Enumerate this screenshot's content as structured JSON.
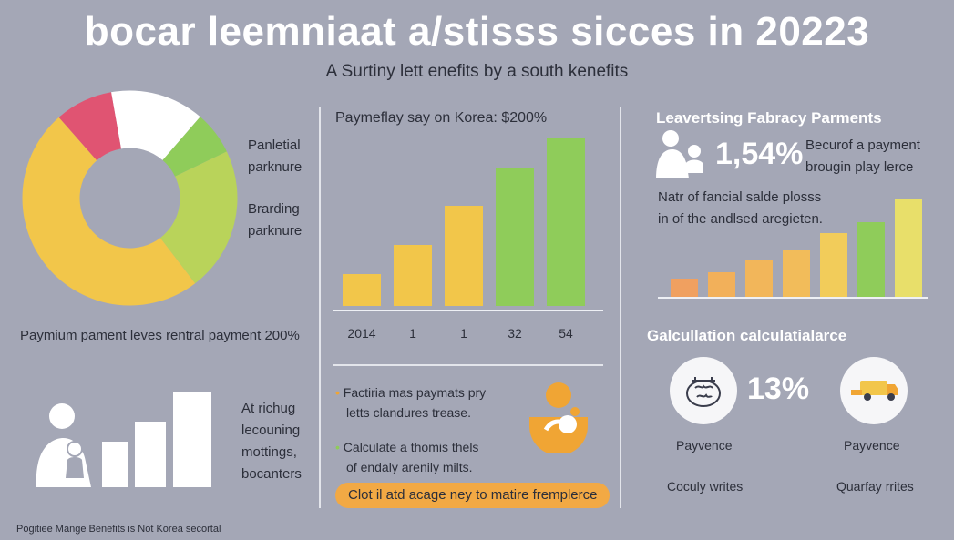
{
  "title": "bocar leemniaat a/stisss sicces in 20223",
  "subtitle": "A Surtiny lett enefits by a south kenefits",
  "left": {
    "donut_label_1": [
      "Panletial",
      "parknure"
    ],
    "donut_label_2": [
      "Brarding",
      "parknure"
    ],
    "payment_caption": "Paymium pament leves rentral payment 200%",
    "bars_caption": [
      "At richug",
      "lecouning",
      "mottings,",
      "bocanters"
    ],
    "footer": "Pogitiee Mange Benefits is Not Korea secortal"
  },
  "middle": {
    "chart_title": "Paymeflay say on Korea: $200%",
    "axis_labels": [
      "2014",
      "1",
      "1",
      "32",
      "54"
    ],
    "bullet_1": [
      "Factiria mas paymats pry",
      "letts clandures trease."
    ],
    "bullet_2": [
      "Calculate a thomis thels",
      "of endaly arenily milts."
    ],
    "button": "Clot il atd acage ney to matire fremplerce"
  },
  "right": {
    "heading": "Leavertsing Fabracy Parments",
    "stat_value": "1,54%",
    "stat_text": [
      "Becurof a payment",
      "brougin play lerce"
    ],
    "note": [
      "Natr of fancial salde plosss",
      "in of the andlsed aregieten."
    ],
    "calc_heading": "Galcullation calculatialarce",
    "calc_value": "13%",
    "item1_label": "Payvence",
    "item2_label": "Payvence",
    "item1_caption": "Coculy writes",
    "item2_caption": "Quarfay rrites"
  },
  "colors": {
    "red": "#e05472",
    "yellow": "#f2c64a",
    "green": "#8fcc5a",
    "orange": "#f0a534",
    "white": "#ffffff"
  },
  "icons": [
    "mother-child-icon",
    "baby-icon",
    "brain-icon",
    "truck-icon"
  ],
  "chart_data": [
    {
      "type": "pie",
      "categories": [
        "",
        "",
        "",
        "",
        ""
      ],
      "values": [
        13,
        6,
        20,
        45,
        8
      ]
    },
    {
      "type": "bar",
      "categories": [
        "2014",
        "1",
        "1",
        "32",
        "54"
      ],
      "values": [
        35,
        67,
        110,
        152,
        184
      ]
    },
    {
      "type": "bar",
      "categories": [
        "",
        "",
        "",
        "",
        "",
        "",
        ""
      ],
      "values": [
        20,
        27,
        40,
        52,
        70,
        82,
        107
      ]
    },
    {
      "type": "bar",
      "categories": [
        "",
        "",
        ""
      ],
      "values": [
        50,
        72,
        104
      ]
    }
  ]
}
